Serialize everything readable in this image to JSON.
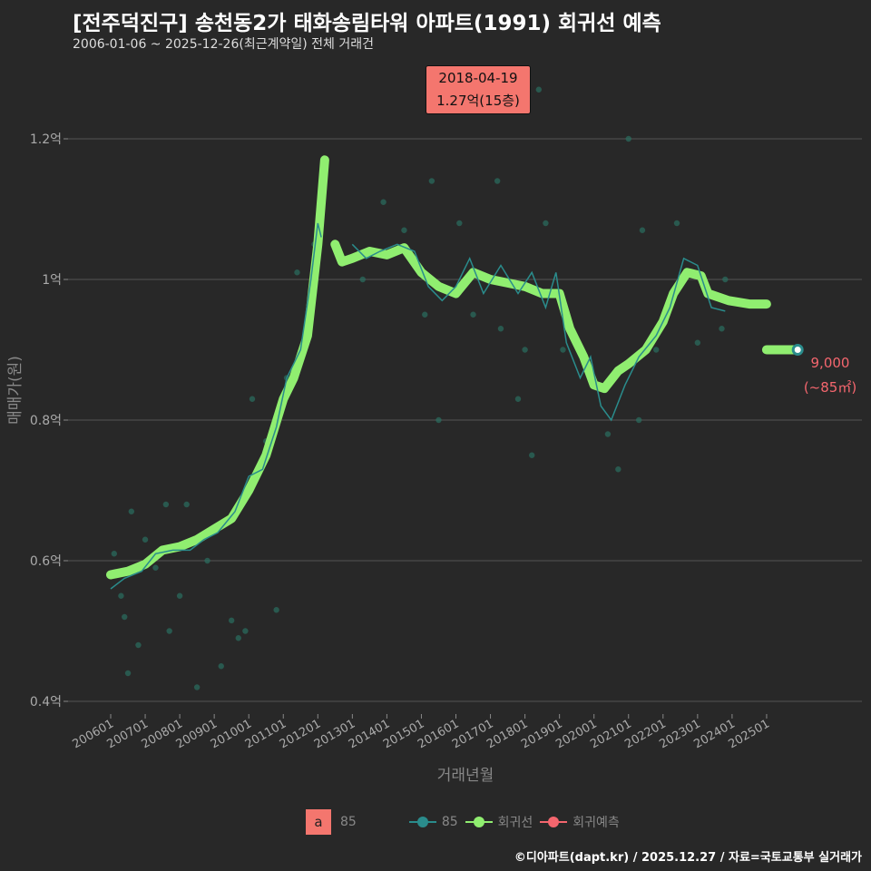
{
  "title": "[전주덕진구] 송천동2가 태화송림타워 아파트(1991) 회귀선 예측",
  "subtitle": "2006-01-06 ~ 2025-12-26(최근계약일) 전체 거래건",
  "annotation": {
    "date": "2018-04-19",
    "value": "1.27억(15층)"
  },
  "end_label": {
    "value": "9,000",
    "area": "(~85㎡)"
  },
  "legend": {
    "a_box": "a",
    "a_label": "85",
    "items": [
      "85",
      "회귀선",
      "회귀예측"
    ]
  },
  "footer": "©디아파트(dapt.kr) / 2025.12.27 / 자료=국토교통부 실거래가",
  "colors": {
    "teal": "#2a8c8c",
    "green": "#90ee70",
    "red": "#f4666e",
    "grid": "#555555"
  },
  "chart_data": {
    "type": "line",
    "xlabel": "거래년월",
    "ylabel": "매매가(원)",
    "yticks": [
      {
        "v": 4000,
        "label": "0.4억"
      },
      {
        "v": 6000,
        "label": "0.6억"
      },
      {
        "v": 8000,
        "label": "0.8억"
      },
      {
        "v": 10000,
        "label": "1억"
      },
      {
        "v": 12000,
        "label": "1.2억"
      }
    ],
    "xticks": [
      "200601",
      "200701",
      "200801",
      "200901",
      "201001",
      "201101",
      "201201",
      "201301",
      "201401",
      "201501",
      "201601",
      "201701",
      "201801",
      "201901",
      "202001",
      "202101",
      "202201",
      "202301",
      "202401",
      "202501"
    ],
    "ylim": [
      3800,
      13000
    ],
    "regression": [
      [
        2006,
        5800
      ],
      [
        2006.5,
        5850
      ],
      [
        2007,
        5950
      ],
      [
        2007.5,
        6150
      ],
      [
        2008,
        6200
      ],
      [
        2008.5,
        6300
      ],
      [
        2009,
        6450
      ],
      [
        2009.5,
        6600
      ],
      [
        2010,
        7000
      ],
      [
        2010.5,
        7500
      ],
      [
        2011,
        8300
      ],
      [
        2011.3,
        8600
      ],
      [
        2011.7,
        9200
      ],
      [
        2012,
        10500
      ],
      [
        2012.2,
        11700
      ],
      null,
      [
        2012.5,
        10500
      ],
      [
        2012.7,
        10250
      ],
      [
        2013,
        10300
      ],
      [
        2013.5,
        10400
      ],
      [
        2014,
        10350
      ],
      [
        2014.5,
        10450
      ],
      [
        2015,
        10100
      ],
      [
        2015.5,
        9900
      ],
      [
        2016,
        9800
      ],
      [
        2016.5,
        10100
      ],
      [
        2017,
        10000
      ],
      [
        2017.5,
        9950
      ],
      [
        2018,
        9900
      ],
      [
        2018.5,
        9800
      ],
      [
        2019,
        9800
      ],
      [
        2019.3,
        9300
      ],
      [
        2019.7,
        8900
      ],
      [
        2020,
        8500
      ],
      [
        2020.3,
        8450
      ],
      [
        2020.7,
        8700
      ],
      [
        2021,
        8800
      ],
      [
        2021.5,
        9000
      ],
      [
        2022,
        9400
      ],
      [
        2022.3,
        9800
      ],
      [
        2022.7,
        10100
      ],
      [
        2023.1,
        10050
      ],
      [
        2023.3,
        9800
      ],
      [
        2023.9,
        9700
      ],
      [
        2024.5,
        9650
      ],
      [
        2025,
        9650
      ]
    ],
    "prediction": [
      [
        2025,
        9000
      ],
      [
        2025.9,
        9000
      ]
    ],
    "series85": [
      [
        2006,
        5600
      ],
      [
        2006.4,
        5750
      ],
      [
        2006.9,
        5850
      ],
      [
        2007.3,
        6100
      ],
      [
        2007.8,
        6150
      ],
      [
        2008.3,
        6150
      ],
      [
        2008.7,
        6300
      ],
      [
        2009.1,
        6400
      ],
      [
        2009.6,
        6700
      ],
      [
        2010,
        7200
      ],
      [
        2010.4,
        7300
      ],
      [
        2010.8,
        7900
      ],
      [
        2011.1,
        8600
      ],
      [
        2011.5,
        9000
      ],
      [
        2011.8,
        10000
      ],
      [
        2012,
        10800
      ],
      [
        2012.1,
        10600
      ],
      null,
      [
        2013,
        10500
      ],
      [
        2013.4,
        10300
      ],
      [
        2013.8,
        10400
      ],
      [
        2014.3,
        10500
      ],
      [
        2014.8,
        10400
      ],
      [
        2015.2,
        9900
      ],
      [
        2015.6,
        9700
      ],
      [
        2016,
        9900
      ],
      [
        2016.4,
        10300
      ],
      [
        2016.8,
        9800
      ],
      [
        2017.3,
        10200
      ],
      [
        2017.8,
        9800
      ],
      [
        2018.2,
        10100
      ],
      [
        2018.6,
        9600
      ],
      [
        2018.9,
        10100
      ],
      [
        2019.2,
        9100
      ],
      [
        2019.6,
        8600
      ],
      [
        2019.9,
        8900
      ],
      [
        2020.2,
        8200
      ],
      [
        2020.5,
        8000
      ],
      [
        2020.9,
        8500
      ],
      [
        2021.3,
        8900
      ],
      [
        2021.8,
        9200
      ],
      [
        2022.2,
        9600
      ],
      [
        2022.6,
        10300
      ],
      [
        2023,
        10200
      ],
      [
        2023.4,
        9600
      ],
      [
        2023.8,
        9550
      ]
    ],
    "points": [
      [
        2006.1,
        6100
      ],
      [
        2006.3,
        5500
      ],
      [
        2006.4,
        5200
      ],
      [
        2006.5,
        4400
      ],
      [
        2006.6,
        6700
      ],
      [
        2006.8,
        4800
      ],
      [
        2007,
        6300
      ],
      [
        2007.3,
        5900
      ],
      [
        2007.6,
        6800
      ],
      [
        2007.7,
        5000
      ],
      [
        2008,
        5500
      ],
      [
        2008.2,
        6800
      ],
      [
        2008.5,
        4200
      ],
      [
        2008.8,
        6000
      ],
      [
        2009.2,
        4500
      ],
      [
        2009.5,
        5150
      ],
      [
        2009.7,
        4900
      ],
      [
        2009.9,
        5000
      ],
      [
        2010.1,
        8300
      ],
      [
        2010.3,
        7300
      ],
      [
        2010.5,
        7700
      ],
      [
        2010.8,
        5300
      ],
      [
        2011.1,
        8600
      ],
      [
        2011.4,
        10100
      ],
      [
        2011.9,
        10500
      ],
      [
        2013.3,
        10000
      ],
      [
        2013.9,
        11100
      ],
      [
        2014.5,
        10700
      ],
      [
        2015.1,
        9500
      ],
      [
        2015.3,
        11400
      ],
      [
        2015.5,
        8000
      ],
      [
        2016.1,
        10800
      ],
      [
        2016.5,
        9500
      ],
      [
        2017.2,
        11400
      ],
      [
        2017.3,
        9300
      ],
      [
        2017.8,
        8300
      ],
      [
        2018,
        9000
      ],
      [
        2018.2,
        7500
      ],
      [
        2018.4,
        12700
      ],
      [
        2018.6,
        10800
      ],
      [
        2019.1,
        9000
      ],
      [
        2020.4,
        7800
      ],
      [
        2020.7,
        7300
      ],
      [
        2021,
        12000
      ],
      [
        2021.3,
        8000
      ],
      [
        2021.4,
        10700
      ],
      [
        2021.8,
        9000
      ],
      [
        2022.4,
        10800
      ],
      [
        2023,
        9100
      ],
      [
        2023.7,
        9300
      ],
      [
        2023.8,
        10000
      ]
    ]
  }
}
